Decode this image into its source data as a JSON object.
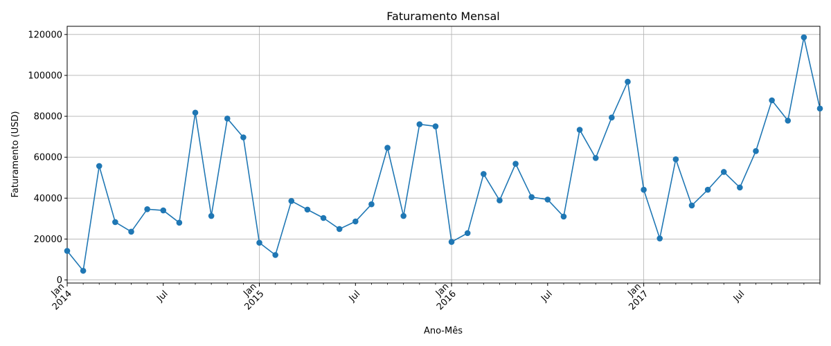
{
  "chart_data": {
    "type": "line",
    "title": "Faturamento Mensal",
    "xlabel": "Ano-Mês",
    "ylabel": "Faturamento (USD)",
    "ylim": [
      -1500,
      124000
    ],
    "xlim": [
      "2014-01",
      "2017-12"
    ],
    "grid": true,
    "yticks": [
      0,
      20000,
      40000,
      60000,
      80000,
      100000,
      120000
    ],
    "xtick_labels": [
      {
        "month": "2014-01",
        "lines": [
          "Jan",
          "2014"
        ]
      },
      {
        "month": "2014-07",
        "lines": [
          "Jul"
        ]
      },
      {
        "month": "2015-01",
        "lines": [
          "Jan",
          "2015"
        ]
      },
      {
        "month": "2015-07",
        "lines": [
          "Jul"
        ]
      },
      {
        "month": "2016-01",
        "lines": [
          "Jan",
          "2016"
        ]
      },
      {
        "month": "2016-07",
        "lines": [
          "Jul"
        ]
      },
      {
        "month": "2017-01",
        "lines": [
          "Jan",
          "2017"
        ]
      },
      {
        "month": "2017-07",
        "lines": [
          "Jul"
        ]
      }
    ],
    "series": [
      {
        "color": "#1f77b4",
        "marker": "circle",
        "x": [
          "2014-01",
          "2014-02",
          "2014-03",
          "2014-04",
          "2014-05",
          "2014-06",
          "2014-07",
          "2014-08",
          "2014-09",
          "2014-10",
          "2014-11",
          "2014-12",
          "2015-01",
          "2015-02",
          "2015-03",
          "2015-04",
          "2015-05",
          "2015-06",
          "2015-07",
          "2015-08",
          "2015-09",
          "2015-10",
          "2015-11",
          "2015-12",
          "2016-01",
          "2016-02",
          "2016-03",
          "2016-04",
          "2016-05",
          "2016-06",
          "2016-07",
          "2016-08",
          "2016-09",
          "2016-10",
          "2016-11",
          "2016-12",
          "2017-01",
          "2017-02",
          "2017-03",
          "2017-04",
          "2017-05",
          "2017-06",
          "2017-07",
          "2017-08",
          "2017-09",
          "2017-10",
          "2017-11",
          "2017-12"
        ],
        "values": [
          14200,
          4500,
          55700,
          28300,
          23600,
          34600,
          34000,
          28000,
          81800,
          31300,
          78900,
          69700,
          18200,
          12200,
          38600,
          34400,
          30300,
          24900,
          28600,
          37000,
          64600,
          31300,
          76100,
          75100,
          18600,
          22900,
          51800,
          38900,
          56800,
          40500,
          39300,
          31000,
          73400,
          59600,
          79400,
          96900,
          44100,
          20300,
          59000,
          36400,
          44100,
          52800,
          45200,
          63000,
          87800,
          77900,
          118600,
          83800
        ]
      }
    ]
  }
}
